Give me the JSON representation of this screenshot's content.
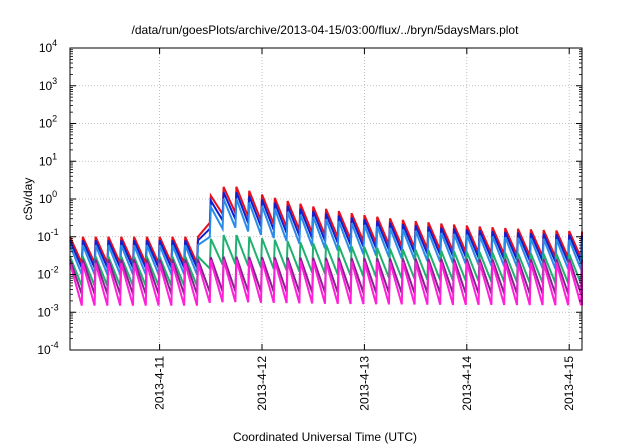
{
  "chart_data": {
    "type": "line",
    "title": "/data/run/goesPlots/archive/2013-04-15/03:00/flux/../bryn/5daysMars.plot",
    "xlabel": "Coordinated Universal Time (UTC)",
    "ylabel": "cSv/day",
    "yscale": "log",
    "ylim": [
      0.0001,
      10000
    ],
    "xlim": [
      "2013-04-10 03:00",
      "2013-04-15 03:00"
    ],
    "grid": true,
    "y_ticks": [
      {
        "base": "10",
        "exp": "-4"
      },
      {
        "base": "10",
        "exp": "-3"
      },
      {
        "base": "10",
        "exp": "-2"
      },
      {
        "base": "10",
        "exp": "-1"
      },
      {
        "base": "10",
        "exp": "0"
      },
      {
        "base": "10",
        "exp": "1"
      },
      {
        "base": "10",
        "exp": "2"
      },
      {
        "base": "10",
        "exp": "3"
      },
      {
        "base": "10",
        "exp": "4"
      }
    ],
    "x_ticks": [
      {
        "label": "2013-4-11",
        "date": "2013-04-11 00:00"
      },
      {
        "label": "2013-4-12",
        "date": "2013-04-12 00:00"
      },
      {
        "label": "2013-4-13",
        "date": "2013-04-13 00:00"
      },
      {
        "label": "2013-4-14",
        "date": "2013-04-14 00:00"
      },
      {
        "label": "2013-4-15",
        "date": "2013-04-15 00:00"
      }
    ],
    "pattern": {
      "note_free": true,
      "cycle_hours": 3,
      "event_start": "2013-04-11 11:30",
      "event_peak": "2013-04-11 16:00"
    },
    "series": [
      {
        "color": "#e8101c",
        "quiet_peak": 0.1,
        "quiet_trough": 0.02,
        "event_peak": 2.5
      },
      {
        "color": "#1020d0",
        "quiet_peak": 0.08,
        "quiet_trough": 0.015,
        "event_peak": 1.8
      },
      {
        "color": "#2a8ce8",
        "quiet_peak": 0.06,
        "quiet_trough": 0.01,
        "event_peak": 1.2
      },
      {
        "color": "#20b070",
        "quiet_peak": 0.03,
        "quiet_trough": 0.005,
        "event_peak": 0.12
      },
      {
        "color": "#8a2090",
        "quiet_peak": 0.025,
        "quiet_trough": 0.003,
        "event_peak": 0.03
      },
      {
        "color": "#ff20d8",
        "quiet_peak": 0.02,
        "quiet_trough": 0.0015,
        "event_peak": 0.025
      }
    ]
  }
}
